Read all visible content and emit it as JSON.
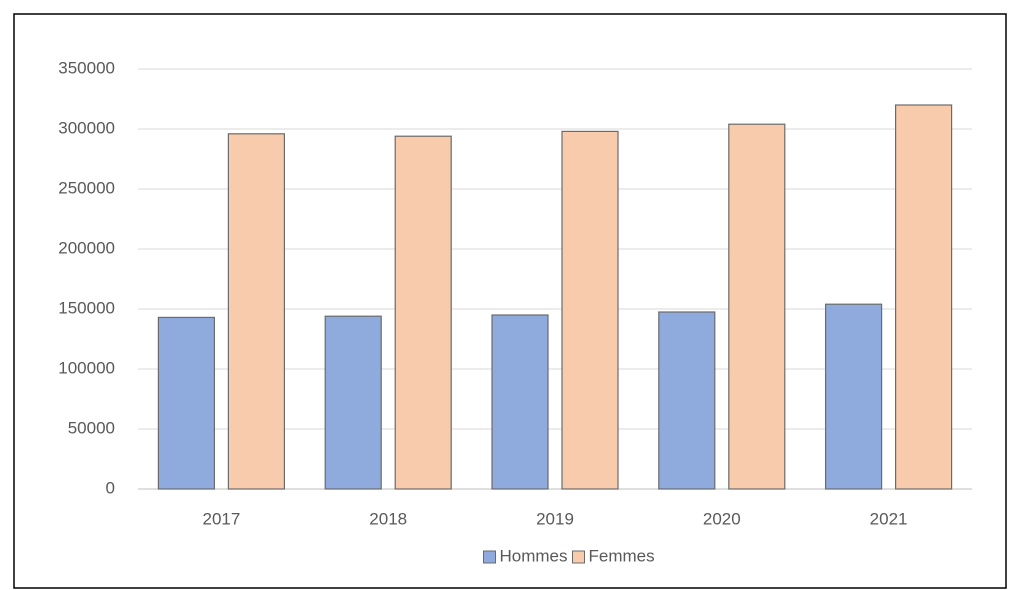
{
  "chart_data": {
    "type": "bar",
    "categories": [
      "2017",
      "2018",
      "2019",
      "2020",
      "2021"
    ],
    "series": [
      {
        "name": "Hommes",
        "color": "#8faadc",
        "values": [
          143000,
          144000,
          145000,
          147500,
          154000
        ]
      },
      {
        "name": "Femmes",
        "color": "#f8cbad",
        "values": [
          296000,
          294000,
          298000,
          304000,
          320000
        ]
      }
    ],
    "ylim": [
      0,
      350000
    ],
    "yticks": [
      0,
      50000,
      100000,
      150000,
      200000,
      250000,
      300000,
      350000
    ],
    "grid": true,
    "legend": "bottom"
  }
}
